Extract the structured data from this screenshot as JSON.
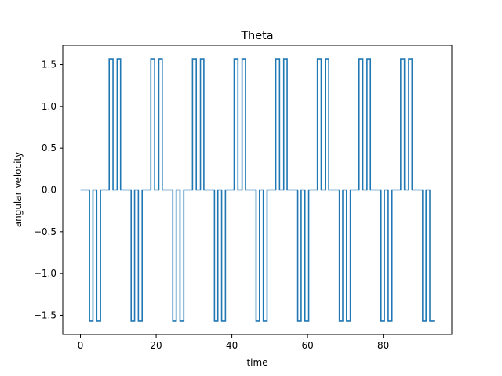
{
  "chart_data": {
    "type": "line",
    "title": "Theta",
    "xlabel": "time",
    "ylabel": "angular velocity",
    "xlim": [
      -4.67,
      98.1
    ],
    "ylim": [
      -1.73,
      1.73
    ],
    "xticks": [
      0,
      20,
      40,
      60,
      80
    ],
    "yticks": [
      -1.5,
      -1.0,
      -0.5,
      0.0,
      0.5,
      1.0,
      1.5
    ],
    "ytick_labels": [
      "−1.5",
      "−1.0",
      "−0.5",
      "0.0",
      "0.5",
      "1.0",
      "1.5"
    ],
    "grid": false,
    "series": [
      {
        "color": "#1f77b4",
        "step": true,
        "x": [
          0,
          2.4,
          2.4,
          3.3,
          3.3,
          4.3,
          4.3,
          5.3,
          5.3,
          7.6,
          7.6,
          8.6,
          8.6,
          9.7,
          9.7,
          10.6,
          10.6,
          13.4,
          13.4,
          14.3,
          14.3,
          15.3,
          15.3,
          16.3,
          16.3,
          18.6,
          18.6,
          19.6,
          19.6,
          20.7,
          20.7,
          21.6,
          21.6,
          24.4,
          24.4,
          25.3,
          25.3,
          26.3,
          26.3,
          27.3,
          27.3,
          29.6,
          29.6,
          30.6,
          30.6,
          31.7,
          31.7,
          32.6,
          32.6,
          35.4,
          35.4,
          36.3,
          36.3,
          37.3,
          37.3,
          38.3,
          38.3,
          40.6,
          40.6,
          41.6,
          41.6,
          42.7,
          42.7,
          43.6,
          43.6,
          46.4,
          46.4,
          47.3,
          47.3,
          48.3,
          48.3,
          49.3,
          49.3,
          51.6,
          51.6,
          52.6,
          52.6,
          53.7,
          53.7,
          54.6,
          54.6,
          57.4,
          57.4,
          58.3,
          58.3,
          59.3,
          59.3,
          60.3,
          60.3,
          62.6,
          62.6,
          63.6,
          63.6,
          64.7,
          64.7,
          65.6,
          65.6,
          68.4,
          68.4,
          69.3,
          69.3,
          70.3,
          70.3,
          71.3,
          71.3,
          73.6,
          73.6,
          74.6,
          74.6,
          75.7,
          75.7,
          76.6,
          76.6,
          79.4,
          79.4,
          80.3,
          80.3,
          81.3,
          81.3,
          82.3,
          82.3,
          84.6,
          84.6,
          85.6,
          85.6,
          86.7,
          86.7,
          87.6,
          87.6,
          90.4,
          90.4,
          91.3,
          91.3,
          92.3,
          92.3,
          93.5
        ],
        "y": [
          0,
          0,
          -1.57,
          -1.57,
          0,
          0,
          -1.57,
          -1.57,
          0,
          0,
          1.57,
          1.57,
          0,
          0,
          1.57,
          1.57,
          0,
          0,
          -1.57,
          -1.57,
          0,
          0,
          -1.57,
          -1.57,
          0,
          0,
          1.57,
          1.57,
          0,
          0,
          1.57,
          1.57,
          0,
          0,
          -1.57,
          -1.57,
          0,
          0,
          -1.57,
          -1.57,
          0,
          0,
          1.57,
          1.57,
          0,
          0,
          1.57,
          1.57,
          0,
          0,
          -1.57,
          -1.57,
          0,
          0,
          -1.57,
          -1.57,
          0,
          0,
          1.57,
          1.57,
          0,
          0,
          1.57,
          1.57,
          0,
          0,
          -1.57,
          -1.57,
          0,
          0,
          -1.57,
          -1.57,
          0,
          0,
          1.57,
          1.57,
          0,
          0,
          1.57,
          1.57,
          0,
          0,
          -1.57,
          -1.57,
          0,
          0,
          -1.57,
          -1.57,
          0,
          0,
          1.57,
          1.57,
          0,
          0,
          1.57,
          1.57,
          0,
          0,
          -1.57,
          -1.57,
          0,
          0,
          -1.57,
          -1.57,
          0,
          0,
          1.57,
          1.57,
          0,
          0,
          1.57,
          1.57,
          0,
          0,
          -1.57,
          -1.57,
          0,
          0,
          -1.57,
          -1.57,
          0,
          0,
          1.57,
          1.57,
          0,
          0,
          1.57,
          1.57,
          0,
          0,
          -1.57,
          -1.57,
          0,
          0,
          -1.57,
          -1.57
        ]
      }
    ]
  }
}
